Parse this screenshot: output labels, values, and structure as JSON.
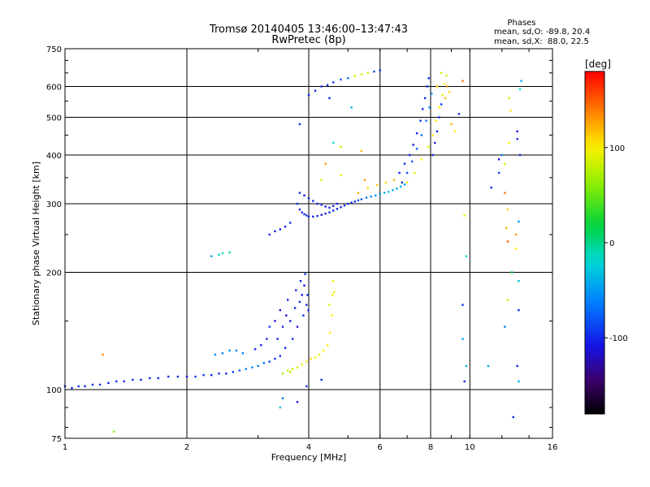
{
  "header": {
    "title": "Tromsø 20140405 13:46:00–13:47:43",
    "subtitle": "RwPretec (8p)"
  },
  "phases": {
    "heading": "Phases",
    "line_o": "mean, sd,O: -89.8, 20.4",
    "line_x": "mean, sd,X:  88.0, 22.5"
  },
  "colorbar": {
    "unit": "[deg]",
    "ticks": [
      {
        "value": 100,
        "label": "100"
      },
      {
        "value": 0,
        "label": "0"
      },
      {
        "value": -100,
        "label": "-100"
      }
    ],
    "range": [
      -180,
      180
    ]
  },
  "chart_data": {
    "type": "scatter",
    "xlabel": "Frequency [MHz]",
    "ylabel": "Stationary phase Virtual Height [km]",
    "x_scale": "log",
    "y_scale": "log",
    "xlim": [
      1,
      16
    ],
    "ylim": [
      75,
      750
    ],
    "x_ticks": [
      {
        "value": 1,
        "label": "1"
      },
      {
        "value": 2,
        "label": "2"
      },
      {
        "value": 4,
        "label": "4"
      },
      {
        "value": 6,
        "label": "6"
      },
      {
        "value": 8,
        "label": "8"
      },
      {
        "value": 10,
        "label": "10"
      },
      {
        "value": 16,
        "label": "16"
      }
    ],
    "y_ticks": [
      {
        "value": 75,
        "label": "75"
      },
      {
        "value": 100,
        "label": "100"
      },
      {
        "value": 200,
        "label": "200"
      },
      {
        "value": 300,
        "label": "300"
      },
      {
        "value": 400,
        "label": "400"
      },
      {
        "value": 500,
        "label": "500"
      },
      {
        "value": 600,
        "label": "600"
      },
      {
        "value": 750,
        "label": "750"
      }
    ],
    "grid": true,
    "points": [
      [
        1.0,
        102,
        -95
      ],
      [
        1.04,
        101,
        -100
      ],
      [
        1.08,
        102,
        -98
      ],
      [
        1.12,
        102,
        -102
      ],
      [
        1.17,
        103,
        -95
      ],
      [
        1.22,
        103,
        -100
      ],
      [
        1.28,
        104,
        -105
      ],
      [
        1.34,
        105,
        -98
      ],
      [
        1.4,
        105,
        -102
      ],
      [
        1.47,
        106,
        -100
      ],
      [
        1.54,
        106,
        -104
      ],
      [
        1.62,
        107,
        -99
      ],
      [
        1.7,
        107,
        -101
      ],
      [
        1.8,
        108,
        -97
      ],
      [
        1.9,
        108,
        -100
      ],
      [
        2.0,
        108,
        -103
      ],
      [
        2.1,
        108,
        -96
      ],
      [
        2.2,
        109,
        -100
      ],
      [
        2.3,
        109,
        -102
      ],
      [
        2.4,
        110,
        -98
      ],
      [
        2.5,
        110,
        -101
      ],
      [
        2.6,
        111,
        -92
      ],
      [
        2.7,
        112,
        -78
      ],
      [
        2.8,
        113,
        -60
      ],
      [
        2.9,
        114,
        -58
      ],
      [
        3.0,
        115,
        -62
      ],
      [
        3.1,
        117,
        -70
      ],
      [
        3.2,
        118,
        -85
      ],
      [
        3.3,
        120,
        -95
      ],
      [
        3.4,
        122,
        -100
      ],
      [
        1.24,
        123,
        135
      ],
      [
        1.32,
        78,
        60
      ],
      [
        2.35,
        123,
        -62
      ],
      [
        2.45,
        124,
        -58
      ],
      [
        2.55,
        126,
        -55
      ],
      [
        2.65,
        126,
        -60
      ],
      [
        2.75,
        124,
        -65
      ],
      [
        2.95,
        127,
        -100
      ],
      [
        3.05,
        130,
        -105
      ],
      [
        3.15,
        135,
        -100
      ],
      [
        3.2,
        145,
        -95
      ],
      [
        3.3,
        150,
        -110
      ],
      [
        3.35,
        135,
        -100
      ],
      [
        3.4,
        160,
        -105
      ],
      [
        3.45,
        145,
        -98
      ],
      [
        3.5,
        128,
        -102
      ],
      [
        3.52,
        155,
        -110
      ],
      [
        3.55,
        170,
        -100
      ],
      [
        3.6,
        150,
        -105
      ],
      [
        3.65,
        135,
        -97
      ],
      [
        3.7,
        162,
        -103
      ],
      [
        3.72,
        180,
        -100
      ],
      [
        3.75,
        145,
        -108
      ],
      [
        3.8,
        168,
        -100
      ],
      [
        3.82,
        190,
        -102
      ],
      [
        3.85,
        175,
        -110
      ],
      [
        3.88,
        155,
        -98
      ],
      [
        3.9,
        185,
        -105
      ],
      [
        3.92,
        198,
        -100
      ],
      [
        3.95,
        165,
        -104
      ],
      [
        3.97,
        175,
        -96
      ],
      [
        3.99,
        160,
        -100
      ],
      [
        3.55,
        112,
        80
      ],
      [
        3.65,
        113,
        85
      ],
      [
        3.75,
        114,
        90
      ],
      [
        3.85,
        116,
        95
      ],
      [
        3.95,
        118,
        100
      ],
      [
        4.05,
        120,
        105
      ],
      [
        4.15,
        121,
        100
      ],
      [
        4.25,
        123,
        95
      ],
      [
        4.35,
        126,
        98
      ],
      [
        4.45,
        130,
        102
      ],
      [
        4.52,
        140,
        100
      ],
      [
        4.56,
        155,
        98
      ],
      [
        4.58,
        175,
        95
      ],
      [
        4.6,
        190,
        100
      ],
      [
        4.62,
        178,
        96
      ],
      [
        4.5,
        165,
        92
      ],
      [
        3.45,
        110,
        70
      ],
      [
        3.6,
        111,
        75
      ],
      [
        3.45,
        95,
        -70
      ],
      [
        3.95,
        102,
        -100
      ],
      [
        4.3,
        106,
        -100
      ],
      [
        3.4,
        90,
        -30
      ],
      [
        3.75,
        93,
        -110
      ],
      [
        3.75,
        300,
        -100
      ],
      [
        3.8,
        290,
        -102
      ],
      [
        3.85,
        285,
        -100
      ],
      [
        3.9,
        282,
        -105
      ],
      [
        3.95,
        280,
        -100
      ],
      [
        4.0,
        278,
        -98
      ],
      [
        4.1,
        278,
        -102
      ],
      [
        4.2,
        279,
        -100
      ],
      [
        4.3,
        281,
        -104
      ],
      [
        4.4,
        283,
        -97
      ],
      [
        4.5,
        285,
        -100
      ],
      [
        4.6,
        288,
        -103
      ],
      [
        4.7,
        291,
        -100
      ],
      [
        4.8,
        294,
        -98
      ],
      [
        4.9,
        297,
        -101
      ],
      [
        5.0,
        300,
        -100
      ],
      [
        5.1,
        302,
        -96
      ],
      [
        5.2,
        304,
        -92
      ],
      [
        5.3,
        306,
        -85
      ],
      [
        5.4,
        308,
        -80
      ],
      [
        5.55,
        311,
        -70
      ],
      [
        5.7,
        313,
        -60
      ],
      [
        5.85,
        315,
        -55
      ],
      [
        6.0,
        318,
        -50
      ],
      [
        6.15,
        320,
        -45
      ],
      [
        6.3,
        322,
        -40
      ],
      [
        6.45,
        325,
        -38
      ],
      [
        6.6,
        328,
        -36
      ],
      [
        6.75,
        332,
        -40
      ],
      [
        6.9,
        336,
        -50
      ],
      [
        3.8,
        320,
        -100
      ],
      [
        3.9,
        315,
        -105
      ],
      [
        4.0,
        310,
        -100
      ],
      [
        4.1,
        305,
        -98
      ],
      [
        4.2,
        300,
        -104
      ],
      [
        4.3,
        298,
        -100
      ],
      [
        4.4,
        295,
        -103
      ],
      [
        4.5,
        293,
        -98
      ],
      [
        4.6,
        296,
        -100
      ],
      [
        4.7,
        300,
        -104
      ],
      [
        5.3,
        320,
        120
      ],
      [
        5.6,
        330,
        110
      ],
      [
        5.9,
        335,
        115
      ],
      [
        6.2,
        340,
        105
      ],
      [
        6.5,
        345,
        120
      ],
      [
        5.5,
        345,
        130
      ],
      [
        4.8,
        355,
        95
      ],
      [
        4.3,
        345,
        90
      ],
      [
        3.2,
        250,
        -100
      ],
      [
        3.3,
        255,
        -100
      ],
      [
        3.4,
        258,
        -100
      ],
      [
        3.5,
        262,
        -102
      ],
      [
        3.6,
        268,
        -98
      ],
      [
        2.4,
        222,
        -20
      ],
      [
        2.45,
        224,
        -10
      ],
      [
        2.55,
        225,
        -5
      ],
      [
        2.3,
        220,
        -40
      ],
      [
        4.0,
        570,
        -100
      ],
      [
        4.15,
        585,
        -100
      ],
      [
        4.3,
        600,
        -98
      ],
      [
        4.45,
        605,
        -95
      ],
      [
        4.6,
        615,
        -90
      ],
      [
        4.8,
        625,
        -80
      ],
      [
        5.0,
        630,
        -70
      ],
      [
        5.2,
        638,
        80
      ],
      [
        5.4,
        645,
        90
      ],
      [
        5.6,
        650,
        85
      ],
      [
        5.8,
        655,
        -80
      ],
      [
        6.0,
        660,
        -90
      ],
      [
        4.5,
        560,
        -100
      ],
      [
        5.1,
        530,
        -40
      ],
      [
        3.8,
        480,
        -100
      ],
      [
        4.6,
        430,
        -20
      ],
      [
        4.8,
        420,
        90
      ],
      [
        5.4,
        410,
        120
      ],
      [
        4.4,
        380,
        130
      ],
      [
        6.7,
        360,
        -100
      ],
      [
        6.9,
        380,
        -98
      ],
      [
        7.1,
        400,
        -100
      ],
      [
        7.25,
        425,
        -102
      ],
      [
        7.4,
        455,
        -100
      ],
      [
        7.55,
        490,
        -95
      ],
      [
        7.65,
        525,
        -100
      ],
      [
        7.75,
        560,
        -102
      ],
      [
        7.85,
        600,
        -100
      ],
      [
        7.92,
        630,
        -98
      ],
      [
        6.8,
        340,
        -90
      ],
      [
        7.0,
        360,
        -85
      ],
      [
        7.2,
        385,
        -80
      ],
      [
        7.4,
        415,
        -75
      ],
      [
        7.6,
        450,
        -70
      ],
      [
        7.8,
        490,
        -65
      ],
      [
        7.95,
        530,
        -60
      ],
      [
        8.05,
        575,
        -55
      ],
      [
        7.0,
        340,
        90
      ],
      [
        7.3,
        360,
        95
      ],
      [
        7.6,
        390,
        100
      ],
      [
        7.9,
        420,
        95
      ],
      [
        8.1,
        450,
        105
      ],
      [
        8.25,
        490,
        98
      ],
      [
        8.4,
        530,
        100
      ],
      [
        8.55,
        570,
        95
      ],
      [
        8.65,
        610,
        100
      ],
      [
        8.75,
        640,
        90
      ],
      [
        8.3,
        600,
        110
      ],
      [
        8.5,
        650,
        80
      ],
      [
        8.7,
        560,
        120
      ],
      [
        8.8,
        600,
        130
      ],
      [
        8.9,
        580,
        110
      ],
      [
        8.1,
        400,
        -100
      ],
      [
        8.2,
        430,
        -104
      ],
      [
        8.3,
        460,
        -98
      ],
      [
        8.4,
        500,
        -100
      ],
      [
        8.5,
        540,
        -96
      ],
      [
        9.0,
        480,
        120
      ],
      [
        9.2,
        460,
        100
      ],
      [
        9.6,
        620,
        140
      ],
      [
        9.7,
        280,
        90
      ],
      [
        9.6,
        135,
        -40
      ],
      [
        9.4,
        510,
        -100
      ],
      [
        9.8,
        220,
        -20
      ],
      [
        9.6,
        165,
        -98
      ],
      [
        9.8,
        115,
        -40
      ],
      [
        9.7,
        105,
        -100
      ],
      [
        11.3,
        330,
        -100
      ],
      [
        11.8,
        390,
        -110
      ],
      [
        11.8,
        360,
        -90
      ],
      [
        12.0,
        400,
        -60
      ],
      [
        12.2,
        380,
        90
      ],
      [
        12.2,
        320,
        140
      ],
      [
        12.3,
        260,
        120
      ],
      [
        12.4,
        290,
        110
      ],
      [
        12.4,
        240,
        150
      ],
      [
        12.5,
        560,
        80
      ],
      [
        12.6,
        520,
        100
      ],
      [
        12.5,
        430,
        100
      ],
      [
        12.7,
        200,
        20
      ],
      [
        13.0,
        250,
        130
      ],
      [
        13.0,
        230,
        100
      ],
      [
        13.1,
        460,
        -110
      ],
      [
        13.1,
        440,
        -100
      ],
      [
        13.2,
        190,
        -30
      ],
      [
        13.2,
        160,
        -100
      ],
      [
        13.1,
        115,
        -100
      ],
      [
        13.2,
        105,
        -40
      ],
      [
        13.2,
        270,
        -50
      ],
      [
        13.3,
        400,
        -95
      ],
      [
        13.4,
        620,
        -40
      ],
      [
        13.3,
        590,
        -20
      ],
      [
        12.2,
        145,
        -60
      ],
      [
        12.4,
        170,
        80
      ],
      [
        11.1,
        115,
        -40
      ],
      [
        12.8,
        85,
        -100
      ]
    ]
  }
}
